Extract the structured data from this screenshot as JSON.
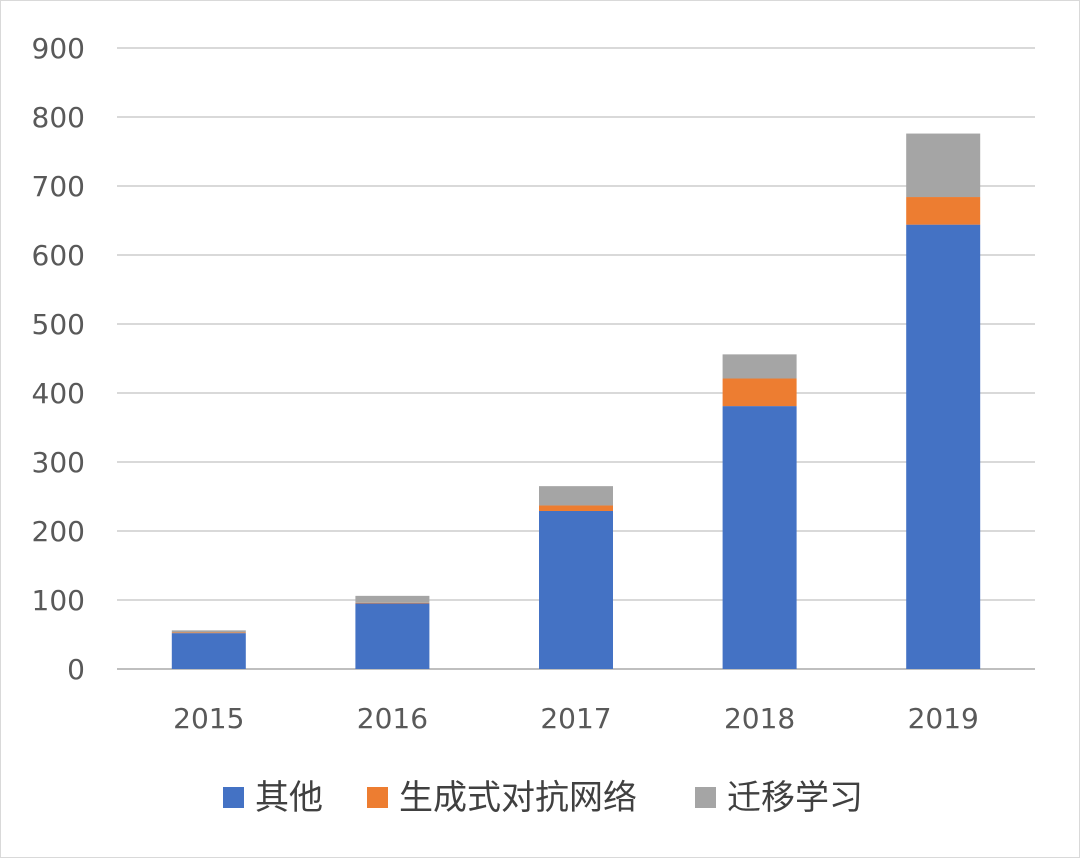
{
  "chart_data": {
    "type": "bar",
    "stacked": true,
    "title": "",
    "xlabel": "",
    "ylabel": "",
    "categories": [
      "2015",
      "2016",
      "2017",
      "2018",
      "2019"
    ],
    "series": [
      {
        "name": "其他",
        "color": "#4472C4",
        "values": [
          52,
          95,
          229,
          381,
          644
        ]
      },
      {
        "name": "生成式对抗网络",
        "color": "#ED7D31",
        "values": [
          1,
          1,
          8,
          40,
          40
        ]
      },
      {
        "name": "迁移学习",
        "color": "#A5A5A5",
        "values": [
          3,
          10,
          28,
          35,
          92
        ]
      }
    ],
    "ylim": [
      0,
      900
    ],
    "yticks": [
      0,
      100,
      200,
      300,
      400,
      500,
      600,
      700,
      800,
      900
    ],
    "grid": true,
    "legend_position": "bottom"
  }
}
